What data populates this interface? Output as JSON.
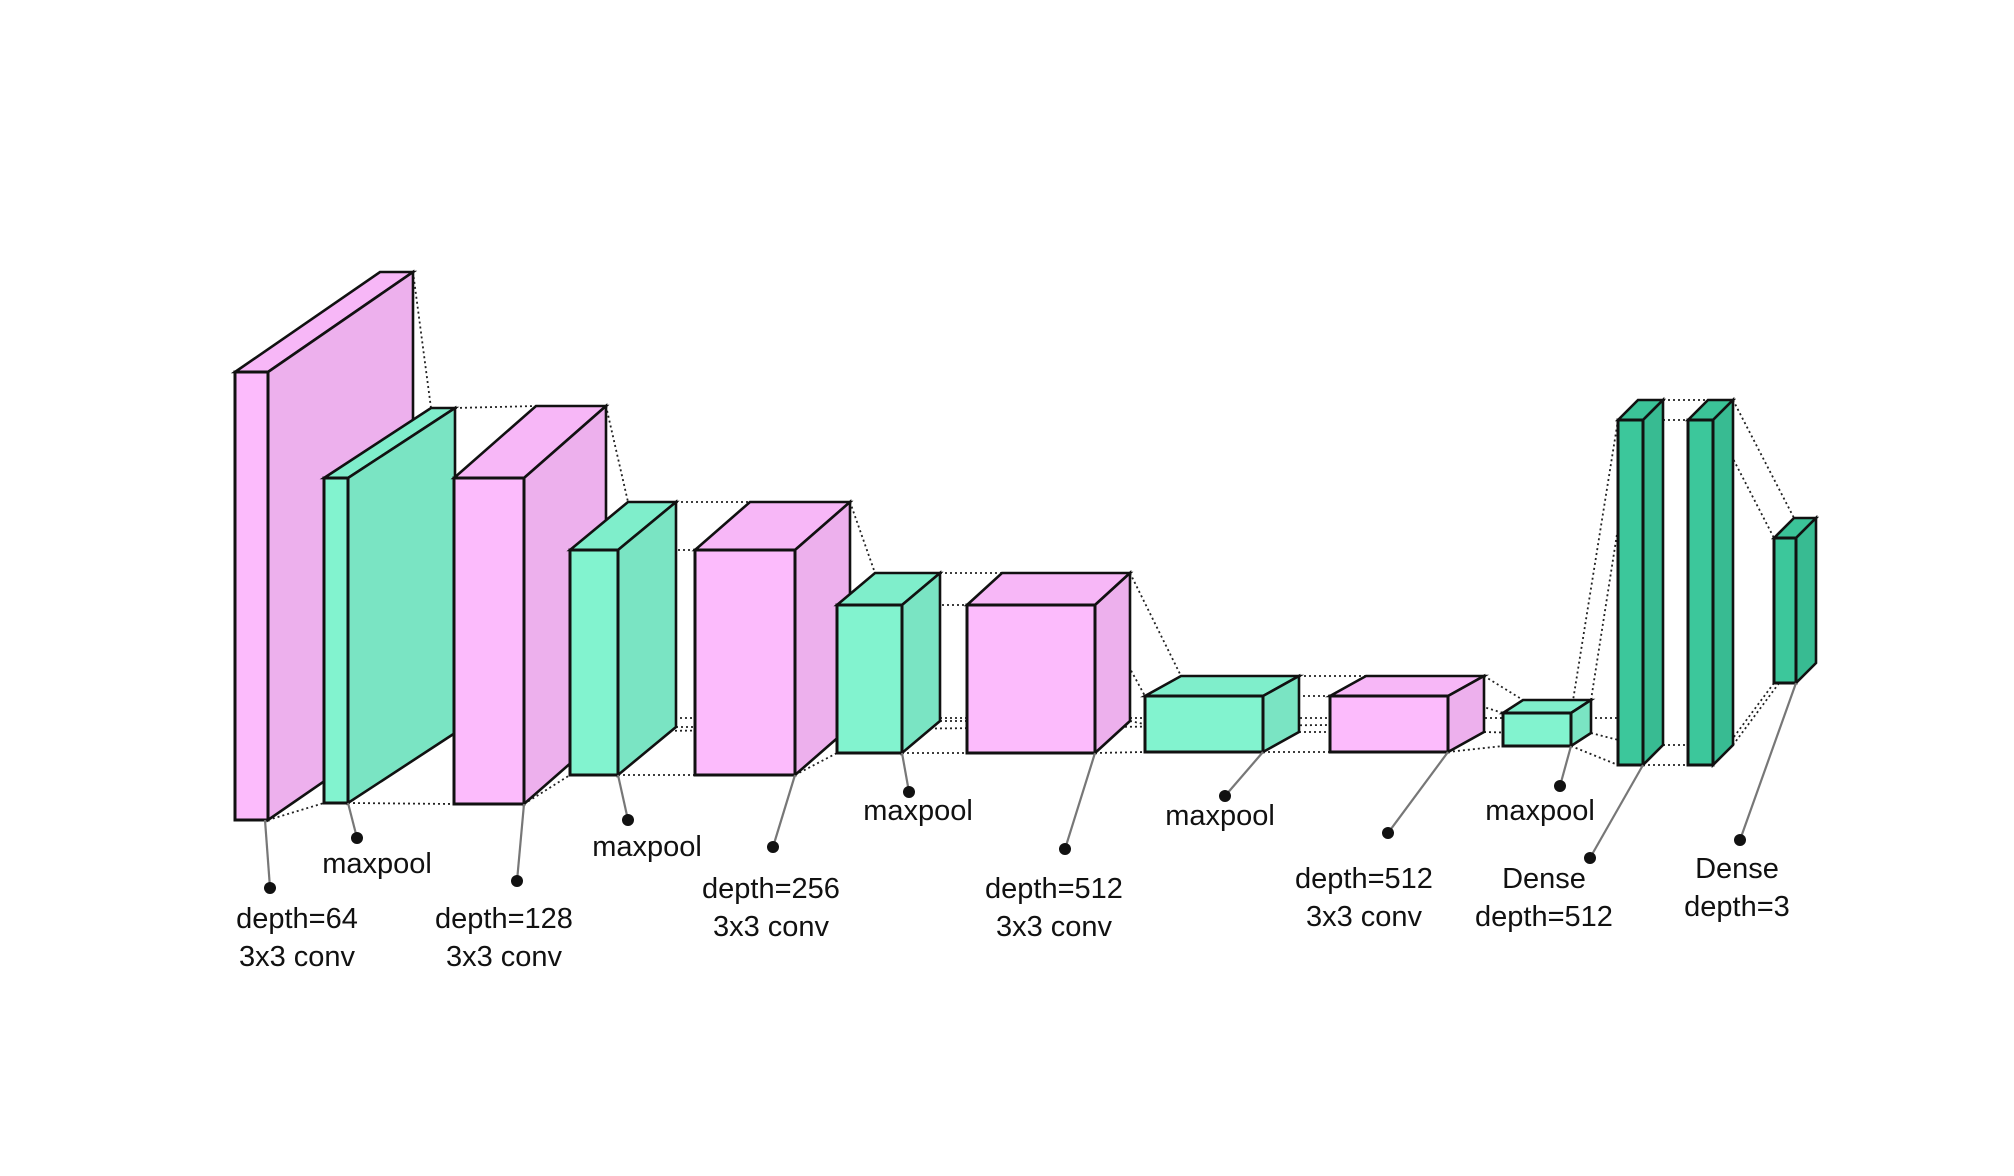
{
  "colors": {
    "conv": "#fcbbfc",
    "pool": "#82f3cf",
    "dense": "#3cc79b",
    "outline": "#111111",
    "background": "#ffffff"
  },
  "labels": {
    "conv64_a": "depth=64",
    "conv64_b": "3x3 conv",
    "pool1": "maxpool",
    "conv128_a": "depth=128",
    "conv128_b": "3x3 conv",
    "pool2": "maxpool",
    "conv256_a": "depth=256",
    "conv256_b": "3x3 conv",
    "pool3": "maxpool",
    "conv512a_a": "depth=512",
    "conv512a_b": "3x3 conv",
    "pool4": "maxpool",
    "conv512b_a": "depth=512",
    "conv512b_b": "3x3 conv",
    "pool5": "maxpool",
    "dense512_a": "Dense",
    "dense512_b": "depth=512",
    "dense3_a": "Dense",
    "dense3_b": "depth=3"
  }
}
